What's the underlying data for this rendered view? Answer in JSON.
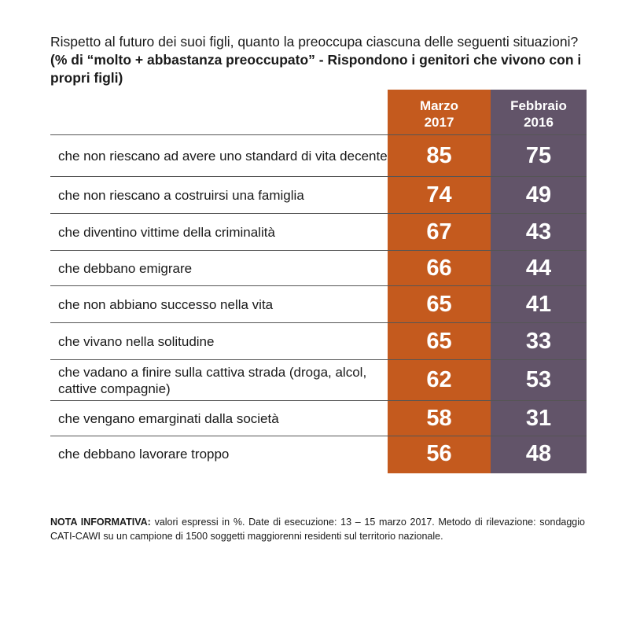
{
  "title_regular": "Rispetto al futuro dei suoi figli, quanto la preoccupa ciascuna delle seguenti situazioni?",
  "title_bold": "(% di “molto + abbastanza preoccupato” - Rispondono i genitori che vivono con i propri figli)",
  "colors": {
    "col_2017": "#c45a1e",
    "col_2016": "#625469"
  },
  "chart_data": {
    "type": "table",
    "columns": [
      {
        "line1": "Marzo",
        "line2": "2017"
      },
      {
        "line1": "Febbraio",
        "line2": "2016"
      }
    ],
    "rows": [
      {
        "label": "che non riescano ad avere uno standard di vita decente",
        "v2017": 85,
        "v2016": 75
      },
      {
        "label": "che non riescano a costruirsi una famiglia",
        "v2017": 74,
        "v2016": 49
      },
      {
        "label": "che diventino vittime della criminalità",
        "v2017": 67,
        "v2016": 43
      },
      {
        "label": "che debbano emigrare",
        "v2017": 66,
        "v2016": 44
      },
      {
        "label": "che non abbiano successo nella vita",
        "v2017": 65,
        "v2016": 41
      },
      {
        "label": "che vivano nella solitudine",
        "v2017": 65,
        "v2016": 33
      },
      {
        "label": "che vadano a finire sulla cattiva strada (droga, alcol, cattive compagnie)",
        "v2017": 62,
        "v2016": 53
      },
      {
        "label": "che vengano emarginati dalla società",
        "v2017": 58,
        "v2016": 31
      },
      {
        "label": "che debbano lavorare troppo",
        "v2017": 56,
        "v2016": 48
      }
    ]
  },
  "note": {
    "label": "NOTA INFORMATIVA:",
    "text": "valori espressi in %. Date di esecuzione: 13 – 15 marzo 2017. Metodo di rilevazione: sondaggio CATI-CAWI su un campione di 1500 soggetti maggiorenni residenti sul territorio nazionale."
  }
}
